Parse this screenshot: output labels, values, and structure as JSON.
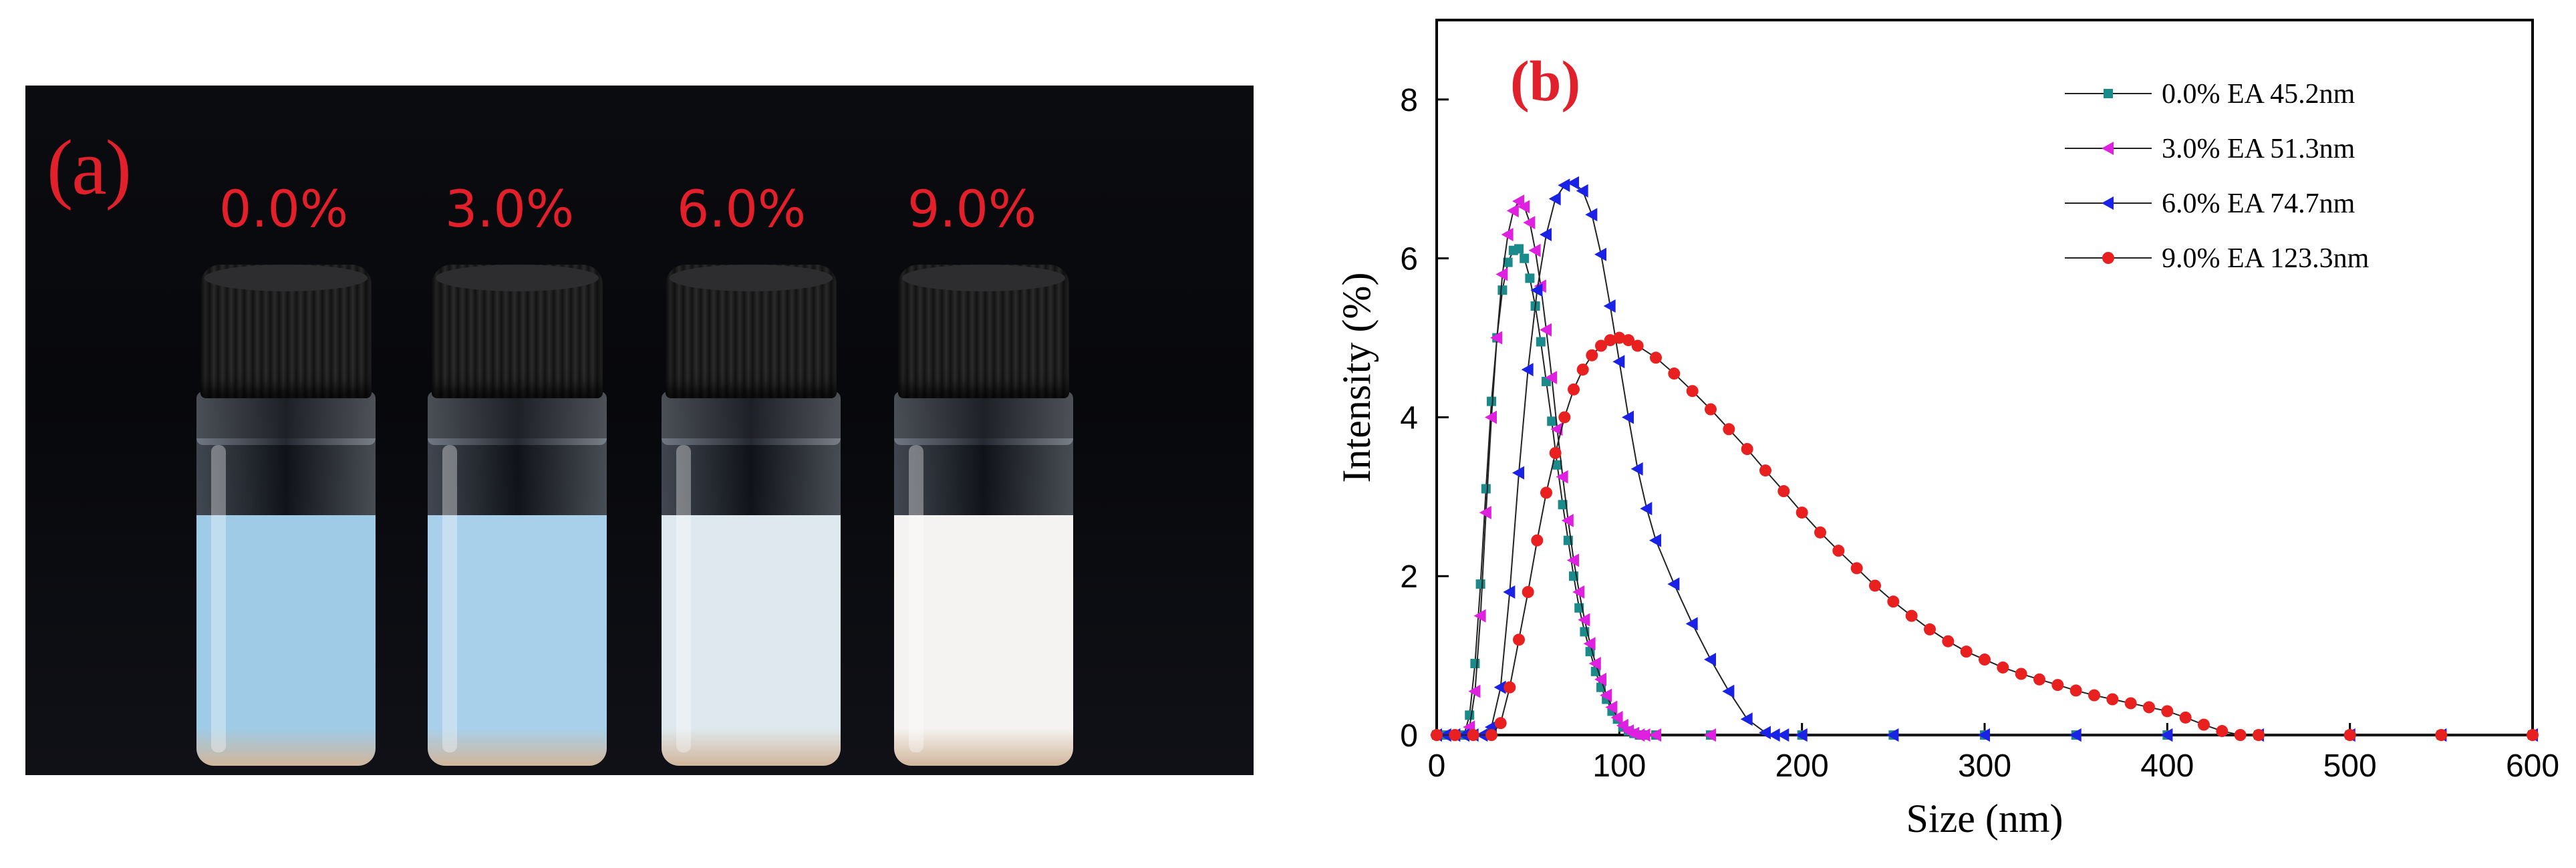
{
  "panel_a": {
    "label": "(a)",
    "samples": [
      "0.0%",
      "3.0%",
      "6.0%",
      "9.0%"
    ],
    "liquid_colors": [
      "#9fcbe6",
      "#a8d0ea",
      "#dfe8ee",
      "#f5f3f2"
    ]
  },
  "panel_b": {
    "label": "(b)",
    "colors": [
      "#1a8a8a",
      "#e020e0",
      "#1a22e6",
      "#e82020"
    ]
  },
  "chart_data": {
    "type": "line",
    "xlabel": "Size (nm)",
    "ylabel": "Intensity (%)",
    "xlim": [
      0,
      600
    ],
    "ylim": [
      0,
      9
    ],
    "xticks": [
      0,
      100,
      200,
      300,
      400,
      500,
      600
    ],
    "yticks": [
      0,
      2,
      4,
      6,
      8
    ],
    "legend_position": "top-right",
    "series": [
      {
        "name": "0.0% EA 45.2nm",
        "marker": "square",
        "x": [
          0,
          5,
          10,
          15,
          18,
          21,
          24,
          27,
          30,
          33,
          36,
          39,
          42,
          45,
          48,
          51,
          54,
          57,
          60,
          63,
          66,
          69,
          72,
          75,
          78,
          81,
          84,
          87,
          90,
          93,
          96,
          99,
          102,
          105,
          108,
          111,
          114,
          120,
          150,
          200,
          250,
          300,
          350,
          400,
          450,
          500,
          550,
          600
        ],
        "y": [
          0,
          0,
          0,
          0,
          0.25,
          0.9,
          1.9,
          3.1,
          4.2,
          5.0,
          5.6,
          5.95,
          6.1,
          6.12,
          6.0,
          5.75,
          5.4,
          4.95,
          4.45,
          3.95,
          3.4,
          2.9,
          2.45,
          2.0,
          1.6,
          1.3,
          1.05,
          0.8,
          0.6,
          0.45,
          0.3,
          0.2,
          0.1,
          0.05,
          0.02,
          0,
          0,
          0,
          0,
          0,
          0,
          0,
          0,
          0,
          0,
          0,
          0,
          0
        ]
      },
      {
        "name": "3.0% EA 51.3nm",
        "marker": "left-triangle",
        "x": [
          0,
          5,
          10,
          15,
          18,
          21,
          24,
          27,
          30,
          33,
          36,
          39,
          42,
          45,
          48,
          51,
          54,
          57,
          60,
          63,
          66,
          69,
          72,
          75,
          78,
          81,
          84,
          87,
          90,
          93,
          96,
          99,
          102,
          105,
          108,
          111,
          114,
          120,
          150,
          200,
          250,
          300,
          350,
          400,
          450,
          500,
          550,
          600
        ],
        "y": [
          0,
          0,
          0,
          0,
          0.1,
          0.55,
          1.5,
          2.8,
          4.0,
          5.0,
          5.8,
          6.3,
          6.6,
          6.72,
          6.65,
          6.45,
          6.1,
          5.65,
          5.1,
          4.5,
          3.85,
          3.25,
          2.7,
          2.2,
          1.8,
          1.45,
          1.15,
          0.9,
          0.7,
          0.5,
          0.35,
          0.22,
          0.12,
          0.05,
          0.02,
          0,
          0,
          0,
          0,
          0,
          0,
          0,
          0,
          0,
          0,
          0,
          0,
          0
        ]
      },
      {
        "name": "6.0% EA 74.7nm",
        "marker": "left-triangle",
        "x": [
          0,
          5,
          10,
          15,
          20,
          25,
          30,
          35,
          40,
          45,
          50,
          55,
          60,
          65,
          70,
          75,
          80,
          85,
          90,
          95,
          100,
          105,
          110,
          115,
          120,
          130,
          140,
          150,
          160,
          170,
          180,
          185,
          190,
          200,
          250,
          300,
          350,
          400,
          450,
          500,
          550,
          600
        ],
        "y": [
          0,
          0,
          0,
          0,
          0,
          0,
          0.1,
          0.6,
          1.8,
          3.3,
          4.6,
          5.6,
          6.3,
          6.75,
          6.92,
          6.95,
          6.85,
          6.55,
          6.05,
          5.4,
          4.7,
          4.0,
          3.35,
          2.85,
          2.45,
          1.9,
          1.4,
          0.95,
          0.55,
          0.2,
          0.03,
          0,
          0,
          0,
          0,
          0,
          0,
          0,
          0,
          0,
          0,
          0
        ]
      },
      {
        "name": "9.0% EA 123.3nm",
        "marker": "circle",
        "x": [
          0,
          10,
          20,
          30,
          35,
          40,
          45,
          50,
          55,
          60,
          65,
          70,
          75,
          80,
          85,
          90,
          95,
          100,
          105,
          110,
          120,
          130,
          140,
          150,
          160,
          170,
          180,
          190,
          200,
          210,
          220,
          230,
          240,
          250,
          260,
          270,
          280,
          290,
          300,
          310,
          320,
          330,
          340,
          350,
          360,
          370,
          380,
          390,
          400,
          410,
          420,
          430,
          440,
          450,
          500,
          550,
          600
        ],
        "y": [
          0,
          0,
          0,
          0,
          0.15,
          0.6,
          1.2,
          1.8,
          2.45,
          3.05,
          3.55,
          4.0,
          4.35,
          4.6,
          4.78,
          4.9,
          4.97,
          5.0,
          4.97,
          4.9,
          4.75,
          4.55,
          4.33,
          4.1,
          3.85,
          3.6,
          3.33,
          3.07,
          2.8,
          2.55,
          2.32,
          2.1,
          1.88,
          1.68,
          1.5,
          1.33,
          1.18,
          1.05,
          0.95,
          0.85,
          0.77,
          0.7,
          0.63,
          0.56,
          0.5,
          0.45,
          0.4,
          0.35,
          0.3,
          0.22,
          0.13,
          0.05,
          0,
          0,
          0,
          0,
          0
        ]
      }
    ]
  }
}
